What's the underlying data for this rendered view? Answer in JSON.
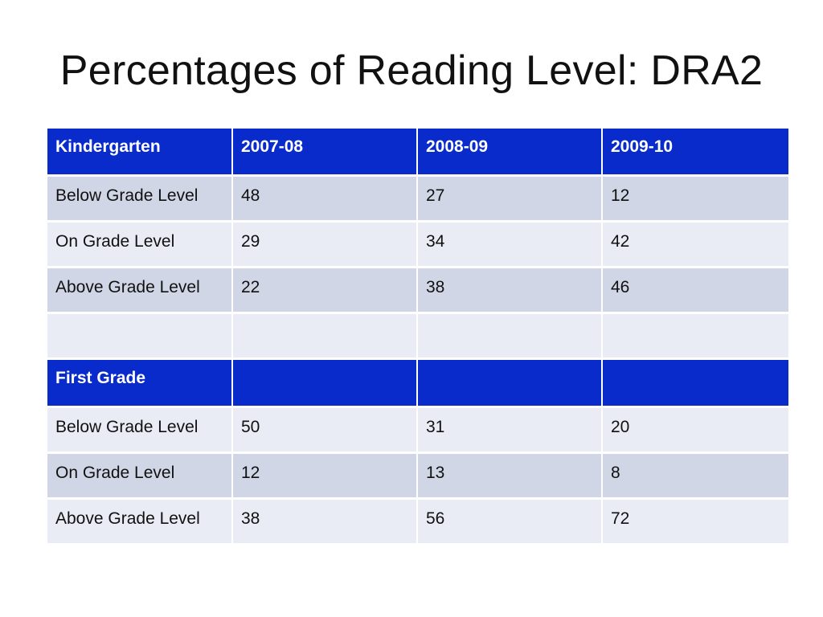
{
  "slide": {
    "title": "Percentages of Reading Level: DRA2"
  },
  "table": {
    "sections": [
      {
        "header": [
          "Kindergarten",
          "2007-08",
          "2008-09",
          "2009-10"
        ],
        "rows": [
          [
            "Below Grade Level",
            "48",
            "27",
            "12"
          ],
          [
            "On Grade Level",
            "29",
            "34",
            "42"
          ],
          [
            "Above Grade Level",
            "22",
            "38",
            "46"
          ],
          [
            "",
            "",
            "",
            ""
          ]
        ]
      },
      {
        "header": [
          "First Grade",
          "",
          "",
          ""
        ],
        "rows": [
          [
            "Below Grade Level",
            "50",
            "31",
            "20"
          ],
          [
            "On Grade Level",
            "12",
            "13",
            "8"
          ],
          [
            "Above Grade Level",
            "38",
            "56",
            "72"
          ]
        ]
      }
    ]
  },
  "colors": {
    "header_bg": "#0a2bcc",
    "row_dark": "#d0d6e5",
    "row_light": "#e9ecf4"
  }
}
